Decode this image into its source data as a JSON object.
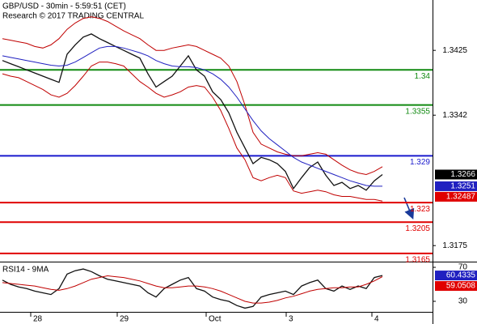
{
  "chart_data": [
    {
      "type": "line",
      "title": "GBP/USD - 30min - 5:59:51 (CET)",
      "subtitle": "Research © 2017 TRADING CENTRAL",
      "x": [
        0,
        1,
        2,
        3,
        4,
        5,
        6,
        7,
        8,
        9,
        10,
        11,
        12,
        13,
        14,
        15,
        16,
        17,
        18,
        19,
        20,
        21,
        22,
        23,
        24,
        25,
        26,
        27,
        28,
        29,
        30,
        31,
        32,
        33,
        34,
        35,
        36,
        37,
        38,
        39,
        40,
        41,
        42,
        43,
        44,
        45,
        46,
        47
      ],
      "xlim": [
        -0.3,
        53.2
      ],
      "xticks": [
        {
          "value": 3.5,
          "label": "28"
        },
        {
          "value": 14.2,
          "label": "29"
        },
        {
          "value": 25.2,
          "label": "Oct"
        },
        {
          "value": 35.1,
          "label": "3"
        },
        {
          "value": 45.7,
          "label": "4"
        }
      ],
      "ylim": [
        1.31555,
        1.34895
      ],
      "yticks": [
        1.3425,
        1.3342,
        1.3175
      ],
      "series": [
        {
          "color": "#111111",
          "values": [
            1.3412,
            1.3408,
            1.3404,
            1.34,
            1.3396,
            1.3392,
            1.3388,
            1.3384,
            1.342,
            1.3432,
            1.3442,
            1.3446,
            1.344,
            1.3435,
            1.343,
            1.3425,
            1.342,
            1.3415,
            1.3395,
            1.3378,
            1.3385,
            1.3392,
            1.3405,
            1.3418,
            1.34,
            1.3392,
            1.3372,
            1.3362,
            1.3345,
            1.332,
            1.33,
            1.328,
            1.3288,
            1.3285,
            1.328,
            1.327,
            1.3248,
            1.3262,
            1.3275,
            1.3282,
            1.3265,
            1.3252,
            1.3256,
            1.3248,
            1.3252,
            1.3246,
            1.3258,
            1.3266
          ]
        },
        {
          "color": "#c00000",
          "values": [
            1.344,
            1.3438,
            1.3436,
            1.3434,
            1.343,
            1.3428,
            1.3432,
            1.344,
            1.3452,
            1.346,
            1.3466,
            1.3468,
            1.3466,
            1.3462,
            1.3456,
            1.345,
            1.3445,
            1.344,
            1.3432,
            1.3425,
            1.3425,
            1.3428,
            1.343,
            1.3432,
            1.343,
            1.3425,
            1.342,
            1.3415,
            1.3405,
            1.3385,
            1.3355,
            1.332,
            1.3305,
            1.33,
            1.3295,
            1.3292,
            1.329,
            1.329,
            1.3292,
            1.3294,
            1.3292,
            1.3285,
            1.3278,
            1.3272,
            1.3268,
            1.3266,
            1.327,
            1.3276
          ]
        },
        {
          "color": "#c00000",
          "values": [
            1.3395,
            1.3392,
            1.339,
            1.3385,
            1.338,
            1.3375,
            1.3368,
            1.3365,
            1.337,
            1.338,
            1.3392,
            1.3405,
            1.341,
            1.341,
            1.3408,
            1.3405,
            1.3395,
            1.3385,
            1.3378,
            1.337,
            1.3365,
            1.3368,
            1.3372,
            1.3378,
            1.338,
            1.3378,
            1.3365,
            1.3348,
            1.3325,
            1.33,
            1.3285,
            1.3262,
            1.3258,
            1.3262,
            1.3265,
            1.3262,
            1.3245,
            1.3242,
            1.3244,
            1.3246,
            1.3244,
            1.324,
            1.3238,
            1.3238,
            1.3236,
            1.3234,
            1.3234,
            1.3232
          ]
        },
        {
          "color": "#2020c0",
          "values": [
            1.3418,
            1.3416,
            1.3414,
            1.3412,
            1.341,
            1.3408,
            1.3406,
            1.3405,
            1.3406,
            1.341,
            1.3416,
            1.3422,
            1.3428,
            1.343,
            1.343,
            1.3428,
            1.3425,
            1.3422,
            1.3418,
            1.3412,
            1.3408,
            1.3405,
            1.3404,
            1.3404,
            1.3403,
            1.34,
            1.3395,
            1.3388,
            1.3378,
            1.3365,
            1.335,
            1.3335,
            1.3322,
            1.3312,
            1.3304,
            1.3296,
            1.3288,
            1.3282,
            1.3278,
            1.3274,
            1.327,
            1.3266,
            1.3262,
            1.3258,
            1.3255,
            1.3252,
            1.3251,
            1.3251
          ]
        }
      ],
      "levels": [
        {
          "value": 1.34,
          "color": "#118a11"
        },
        {
          "value": 1.3355,
          "color": "#118a11"
        },
        {
          "value": 1.329,
          "color": "#1a1acd"
        },
        {
          "value": 1.323,
          "color": "#e00000"
        },
        {
          "value": 1.3205,
          "color": "#e00000"
        },
        {
          "value": 1.3165,
          "color": "#e00000"
        }
      ],
      "markers": [
        {
          "value": 1.3266,
          "color": "#000000"
        },
        {
          "value": 1.3251,
          "color": "#2020c0"
        },
        {
          "value": 1.32487,
          "color": "#e00000"
        }
      ]
    },
    {
      "type": "line",
      "title": "RSI14 - 9MA",
      "x": [
        0,
        1,
        2,
        3,
        4,
        5,
        6,
        7,
        8,
        9,
        10,
        11,
        12,
        13,
        14,
        15,
        16,
        17,
        18,
        19,
        20,
        21,
        22,
        23,
        24,
        25,
        26,
        27,
        28,
        29,
        30,
        31,
        32,
        33,
        34,
        35,
        36,
        37,
        38,
        39,
        40,
        41,
        42,
        43,
        44,
        45,
        46,
        47
      ],
      "xlim": [
        -0.3,
        53.2
      ],
      "ylim": [
        17.6,
        74.8
      ],
      "yticks": [
        70,
        30
      ],
      "series": [
        {
          "color": "#111111",
          "values": [
            55,
            50,
            47,
            45,
            42,
            40,
            38,
            45,
            62,
            66,
            68,
            65,
            60,
            56,
            54,
            52,
            50,
            48,
            40,
            35,
            45,
            50,
            55,
            58,
            45,
            42,
            35,
            32,
            30,
            25,
            22,
            24,
            35,
            38,
            40,
            42,
            38,
            48,
            52,
            55,
            45,
            42,
            48,
            44,
            48,
            45,
            58,
            60.4335
          ]
        },
        {
          "color": "#c00000",
          "values": [
            52,
            51,
            50,
            49,
            48,
            46,
            44,
            43,
            45,
            48,
            52,
            56,
            58,
            60,
            59,
            58,
            56,
            54,
            51,
            48,
            46,
            46,
            47,
            48,
            48,
            47,
            45,
            42,
            38,
            34,
            30,
            28,
            28,
            29,
            31,
            34,
            36,
            39,
            42,
            44,
            45,
            46,
            46,
            47,
            47,
            50,
            54,
            59.0508
          ]
        }
      ],
      "markers": [
        {
          "value": 60.4335,
          "color": "#2020c0"
        },
        {
          "value": 59.0508,
          "color": "#e00000"
        }
      ]
    }
  ]
}
